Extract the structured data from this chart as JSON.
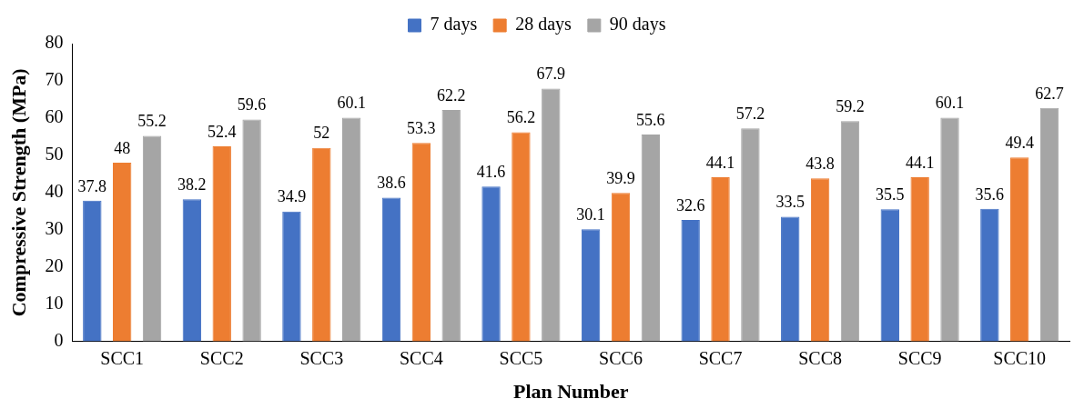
{
  "chart_data": {
    "type": "bar",
    "xlabel": "Plan Number",
    "ylabel": "Compressive Strength (MPa)",
    "categories": [
      "SCC1",
      "SCC2",
      "SCC3",
      "SCC4",
      "SCC5",
      "SCC6",
      "SCC7",
      "SCC8",
      "SCC9",
      "SCC10"
    ],
    "series": [
      {
        "name": "7 days",
        "color": "#4472c4",
        "values": [
          37.8,
          38.2,
          34.9,
          38.6,
          41.6,
          30.1,
          32.6,
          33.5,
          35.5,
          35.6
        ]
      },
      {
        "name": "28 days",
        "color": "#ed7d31",
        "values": [
          48,
          52.4,
          52,
          53.3,
          56.2,
          39.9,
          44.1,
          43.8,
          44.1,
          49.4
        ]
      },
      {
        "name": "90 days",
        "color": "#a5a5a5",
        "values": [
          55.2,
          59.6,
          60.1,
          62.2,
          67.9,
          55.6,
          57.2,
          59.2,
          60.1,
          62.7
        ]
      }
    ],
    "ylim": [
      0,
      80
    ],
    "yticks": [
      0,
      10,
      20,
      30,
      40,
      50,
      60,
      70,
      80
    ],
    "grid": false,
    "legend": "top",
    "data_labels": true
  }
}
